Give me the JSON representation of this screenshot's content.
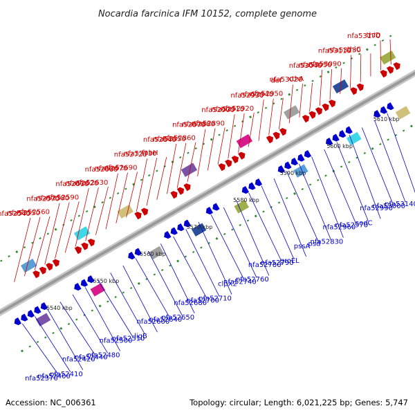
{
  "title": "Nocardia farcinica IFM 10152, complete genome",
  "accession": "Accession: NC_006361",
  "summary": "Topology: circular; Length: 6,021,225 bp; Genes: 5,747",
  "colors": {
    "top_strand": "#cc0000",
    "bottom_strand": "#0000cc",
    "backbone": "#999999",
    "tick": "#2e8b2e"
  },
  "scale_labels": [
    "5540 kbp",
    "5550 kbp",
    "5560 kbp",
    "5570 kbp",
    "5580 kbp",
    "5590 kbp",
    "5600 kbp",
    "5610 kbp"
  ],
  "top_genes": [
    "nfa52540",
    "nfa52550",
    "nfa52560",
    "nfa52570",
    "nfa52580",
    "nfa52590",
    "nfa52610",
    "nfa52620",
    "nfa52630",
    "nfa52660",
    "nfa52670",
    "nfa52690",
    "nfa52720",
    "nfa52730",
    "fabH",
    "nfa52840",
    "nfa52850",
    "nfa52860",
    "nfa52870",
    "nfa52880",
    "nfa52890",
    "nfa52900",
    "nfa52910",
    "nfa52920",
    "nfa52930",
    "nfa52940",
    "nfa52950",
    "def",
    "nfa53020",
    "xthA",
    "nfa53040",
    "nfa53050",
    "nfa53090",
    "nfa53110",
    "nfa53130",
    "thiC",
    "nfa53170",
    "thiD"
  ],
  "bottom_genes": [
    "nfa52370",
    "nfa52400",
    "nfa52410",
    "nfa52420",
    "nfa52440",
    "nfa52480",
    "nfa52500",
    "nfa52510",
    "ligB",
    "nfa52600",
    "nfa52640",
    "nfa52650",
    "nfa52680",
    "nfa52700",
    "nfa52710",
    "clpX2",
    "nfa52740",
    "nfa52760",
    "nfa52780",
    "nfa52790",
    "groEL",
    "pssA",
    "psd",
    "nfa52830",
    "nfa52960",
    "nfa52970",
    "sodC",
    "nfa52990",
    "nfa53000",
    "nfa53140"
  ]
}
